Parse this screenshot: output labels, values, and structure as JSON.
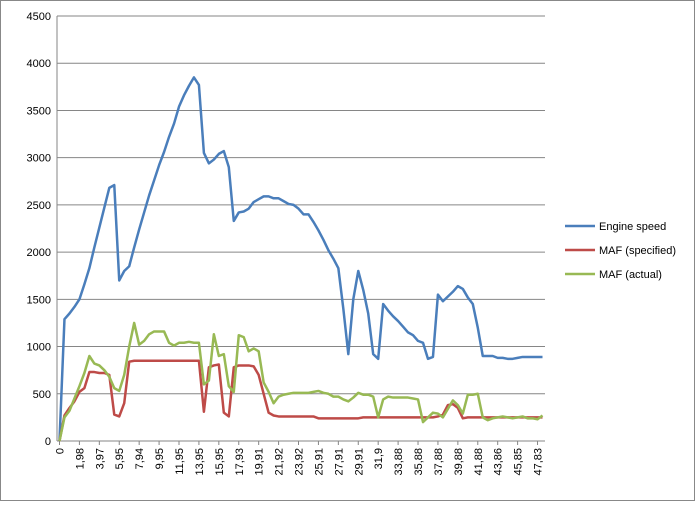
{
  "chart_data": {
    "type": "line",
    "categories": [
      "0",
      null,
      null,
      null,
      "1,98",
      null,
      null,
      null,
      "3,97",
      null,
      null,
      null,
      "5,95",
      null,
      null,
      null,
      "7,94",
      null,
      null,
      null,
      "9,95",
      null,
      null,
      null,
      "11,95",
      null,
      null,
      null,
      "13,95",
      null,
      null,
      null,
      "15,95",
      null,
      null,
      null,
      "17,93",
      null,
      null,
      null,
      "19,91",
      null,
      null,
      null,
      "21,92",
      null,
      null,
      null,
      "23,92",
      null,
      null,
      null,
      "25,91",
      null,
      null,
      null,
      "27,91",
      null,
      null,
      null,
      "29,91",
      null,
      null,
      null,
      "31,9",
      null,
      null,
      null,
      "33,88",
      null,
      null,
      null,
      "35,88",
      null,
      null,
      null,
      "37,88",
      null,
      null,
      null,
      "39,88",
      null,
      null,
      null,
      "41,88",
      null,
      null,
      null,
      "43,86",
      null,
      null,
      null,
      "45,85",
      null,
      null,
      null,
      "47,83",
      null
    ],
    "series": [
      {
        "name": "Engine speed",
        "color": "#4a7ebb",
        "values": [
          0,
          1290,
          1350,
          1420,
          1500,
          1660,
          1830,
          2050,
          2260,
          2470,
          2680,
          2710,
          1700,
          1800,
          1850,
          2050,
          2240,
          2420,
          2600,
          2760,
          2920,
          3060,
          3220,
          3360,
          3540,
          3660,
          3760,
          3850,
          3770,
          3050,
          2940,
          2980,
          3040,
          3070,
          2900,
          2330,
          2420,
          2430,
          2460,
          2530,
          2560,
          2590,
          2590,
          2570,
          2570,
          2540,
          2510,
          2500,
          2460,
          2400,
          2400,
          2320,
          2230,
          2130,
          2020,
          1930,
          1830,
          1400,
          920,
          1500,
          1800,
          1600,
          1350,
          920,
          870,
          1450,
          1380,
          1320,
          1270,
          1210,
          1150,
          1120,
          1060,
          1040,
          870,
          890,
          1550,
          1480,
          1530,
          1580,
          1640,
          1610,
          1520,
          1450,
          1200,
          900,
          900,
          900,
          880,
          880,
          870,
          870,
          880,
          890,
          890,
          890,
          890,
          890
        ]
      },
      {
        "name": "MAF (specified)",
        "color": "#be4b48",
        "values": [
          0,
          270,
          350,
          420,
          520,
          560,
          730,
          730,
          720,
          720,
          700,
          280,
          260,
          400,
          840,
          850,
          850,
          850,
          850,
          850,
          850,
          850,
          850,
          850,
          850,
          850,
          850,
          850,
          850,
          310,
          780,
          800,
          810,
          300,
          260,
          780,
          800,
          800,
          800,
          790,
          700,
          500,
          300,
          270,
          260,
          260,
          260,
          260,
          260,
          260,
          260,
          260,
          240,
          240,
          240,
          240,
          240,
          240,
          240,
          240,
          240,
          250,
          250,
          250,
          250,
          250,
          250,
          250,
          250,
          250,
          250,
          250,
          250,
          250,
          250,
          250,
          260,
          280,
          380,
          390,
          350,
          240,
          250,
          250,
          250,
          250,
          250,
          250,
          250,
          250,
          250,
          250,
          250,
          250,
          250,
          250,
          250,
          250
        ]
      },
      {
        "name": "MAF (actual)",
        "color": "#98b954",
        "values": [
          0,
          250,
          320,
          450,
          580,
          720,
          900,
          820,
          800,
          750,
          680,
          560,
          530,
          700,
          1000,
          1250,
          1020,
          1060,
          1130,
          1160,
          1160,
          1160,
          1040,
          1010,
          1040,
          1040,
          1050,
          1040,
          1040,
          600,
          640,
          1130,
          900,
          920,
          580,
          520,
          1120,
          1100,
          950,
          980,
          950,
          620,
          520,
          400,
          470,
          490,
          500,
          510,
          510,
          510,
          510,
          520,
          530,
          510,
          500,
          470,
          470,
          440,
          420,
          460,
          510,
          490,
          490,
          470,
          250,
          440,
          470,
          460,
          460,
          460,
          460,
          450,
          440,
          200,
          250,
          300,
          290,
          250,
          340,
          430,
          380,
          290,
          490,
          490,
          500,
          250,
          220,
          240,
          250,
          260,
          250,
          240,
          250,
          260,
          240,
          240,
          230,
          270
        ]
      }
    ],
    "ylim": [
      0,
      4500
    ],
    "yticks": [
      0,
      500,
      1000,
      1500,
      2000,
      2500,
      3000,
      3500,
      4000,
      4500
    ],
    "grid": true,
    "legend": "right"
  }
}
